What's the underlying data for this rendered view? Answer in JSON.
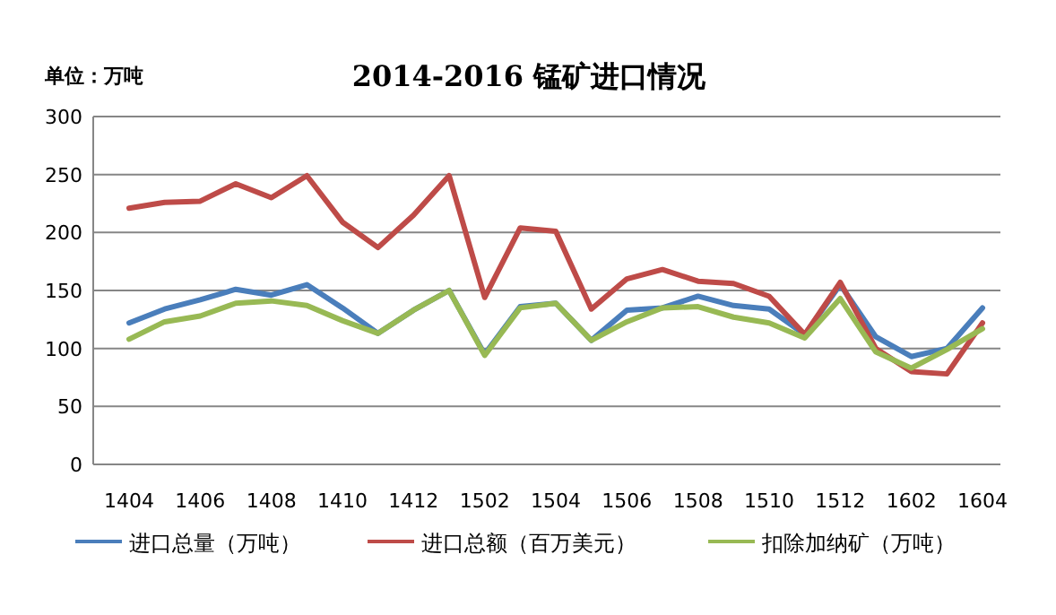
{
  "chart_data": {
    "type": "line",
    "title": "2014-2016 锰矿进口情况",
    "ylabel": "单位：万吨",
    "categories": [
      "1404",
      null,
      "1406",
      null,
      "1408",
      null,
      "1410",
      null,
      "1412",
      null,
      "1502",
      null,
      "1504",
      null,
      "1506",
      null,
      "1508",
      null,
      "1510",
      null,
      "1512",
      null,
      "1602",
      null,
      "1604"
    ],
    "series": [
      {
        "name": "进口总量（万吨）",
        "color": "#4a7ebb",
        "values": [
          122,
          134,
          142,
          151,
          146,
          155,
          135,
          113,
          133,
          150,
          95,
          136,
          139,
          107,
          133,
          135,
          145,
          137,
          134,
          112,
          155,
          110,
          93,
          100,
          135
        ]
      },
      {
        "name": "进口总额（百万美元）",
        "color": "#be4b48",
        "values": [
          221,
          226,
          227,
          242,
          230,
          249,
          209,
          187,
          215,
          249,
          144,
          204,
          201,
          134,
          160,
          168,
          158,
          156,
          145,
          112,
          157,
          100,
          80,
          78,
          122
        ]
      },
      {
        "name": "扣除加纳矿（万吨）",
        "color": "#98b954",
        "values": [
          108,
          123,
          128,
          139,
          141,
          137,
          124,
          113,
          133,
          150,
          94,
          135,
          139,
          107,
          123,
          135,
          136,
          127,
          122,
          109,
          143,
          97,
          83,
          99,
          117
        ]
      }
    ],
    "ylim": [
      0,
      300
    ],
    "yticks": [
      0,
      50,
      100,
      150,
      200,
      250,
      300
    ],
    "grid": "y",
    "legend": "bottom",
    "marker": "none",
    "line_style": "solid"
  }
}
